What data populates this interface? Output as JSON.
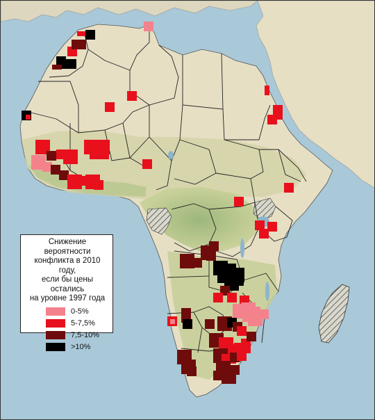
{
  "legend": {
    "title_lines": [
      "Снижение вероятности",
      "конфликта в 2010 году,",
      "если бы цены остались",
      "на уровне 1997 года"
    ],
    "items": [
      {
        "label": "0-5%",
        "color": "#f4828c"
      },
      {
        "label": "5-7,5%",
        "color": "#e8101c"
      },
      {
        "label": "7,5-10%",
        "color": "#6e0c0c"
      },
      {
        "label": ">10%",
        "color": "#000000"
      }
    ]
  },
  "colors": {
    "sea": "#a9c8d8",
    "desert": "#e6dfc4",
    "savanna": "#c9d19a",
    "forest": "#a8bd86",
    "border": "#222222"
  },
  "hatched_regions": [
    "Madagascar",
    "Gabon",
    "Uganda"
  ]
}
